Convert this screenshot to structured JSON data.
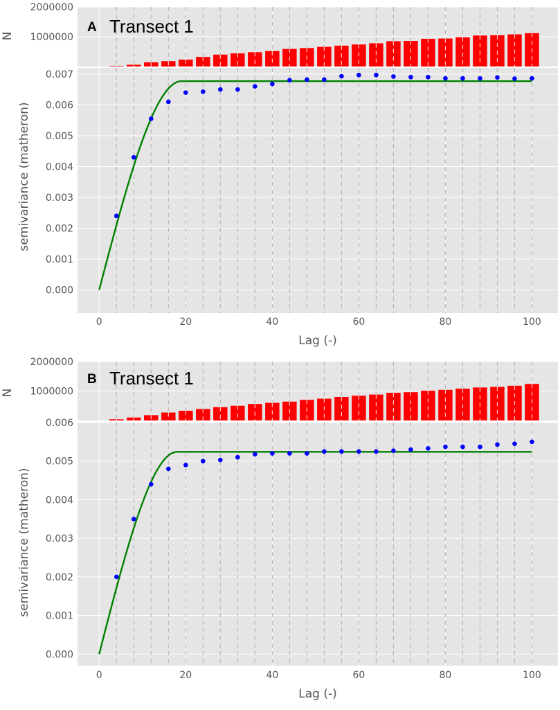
{
  "colors": {
    "panel_bg": "#e5e5e5",
    "grid": "#ffffff",
    "lag_lines": "#b8b8b8",
    "bars": "#ff0000",
    "points": "#0000ff",
    "model": "#008000",
    "tick_text": "#555555"
  },
  "chart_data": [
    {
      "type": "scatter",
      "panel": "A",
      "title": "Transect 1",
      "xlabel": "Lag (-)",
      "ylabel": "semivariance (matheron)",
      "xlim": [
        -5,
        106
      ],
      "ylim": [
        -0.00075,
        0.0072
      ],
      "xticks": [
        "0",
        "20",
        "40",
        "60",
        "80",
        "100"
      ],
      "yticks": [
        "0.000",
        "0.001",
        "0.002",
        "0.003",
        "0.004",
        "0.005",
        "0.006",
        "0.007"
      ],
      "grid": true,
      "lags": [
        4,
        8,
        12,
        16,
        20,
        24,
        28,
        32,
        36,
        40,
        44,
        48,
        52,
        56,
        60,
        64,
        68,
        72,
        76,
        80,
        84,
        88,
        92,
        96,
        100
      ],
      "series": [
        {
          "kind": "points",
          "x": [
            4,
            8,
            12,
            16,
            20,
            24,
            28,
            32,
            36,
            40,
            44,
            48,
            52,
            56,
            60,
            64,
            68,
            72,
            76,
            80,
            84,
            88,
            92,
            96,
            100
          ],
          "y": [
            0.0024,
            0.0043,
            0.00555,
            0.0061,
            0.0064,
            0.00643,
            0.0065,
            0.0065,
            0.0066,
            0.00668,
            0.0068,
            0.00682,
            0.00682,
            0.00693,
            0.00697,
            0.00697,
            0.00692,
            0.0069,
            0.0069,
            0.00686,
            0.00686,
            0.00686,
            0.00689,
            0.00685,
            0.00686
          ]
        },
        {
          "kind": "model-line",
          "model": "spherical",
          "range": 19,
          "sill": 0.00677,
          "nugget": 0,
          "x_from": 0,
          "x_to": 100
        }
      ],
      "histogram": {
        "ylabel": "N",
        "yticks": [
          "1000000",
          "2000000"
        ],
        "ylim": [
          0,
          2000000
        ],
        "x": [
          4,
          8,
          12,
          16,
          20,
          24,
          28,
          32,
          36,
          40,
          44,
          48,
          52,
          56,
          60,
          64,
          68,
          72,
          76,
          80,
          84,
          88,
          92,
          96,
          100
        ],
        "values": [
          20000,
          60000,
          140000,
          180000,
          230000,
          320000,
          400000,
          440000,
          480000,
          520000,
          590000,
          620000,
          660000,
          700000,
          740000,
          780000,
          850000,
          860000,
          930000,
          940000,
          980000,
          1040000,
          1050000,
          1080000,
          1120000
        ]
      }
    },
    {
      "type": "scatter",
      "panel": "B",
      "title": "Transect 1",
      "xlabel": "Lag (-)",
      "ylabel": "semivariance (matheron)",
      "xlim": [
        -5,
        106
      ],
      "ylim": [
        -0.0003,
        0.006
      ],
      "xticks": [
        "0",
        "20",
        "40",
        "60",
        "80",
        "100"
      ],
      "yticks": [
        "0.000",
        "0.001",
        "0.002",
        "0.003",
        "0.004",
        "0.005",
        "0.006"
      ],
      "grid": true,
      "lags": [
        4,
        8,
        12,
        16,
        20,
        24,
        28,
        32,
        36,
        40,
        44,
        48,
        52,
        56,
        60,
        64,
        68,
        72,
        76,
        80,
        84,
        88,
        92,
        96,
        100
      ],
      "series": [
        {
          "kind": "points",
          "x": [
            4,
            8,
            12,
            16,
            20,
            24,
            28,
            32,
            36,
            40,
            44,
            48,
            52,
            56,
            60,
            64,
            68,
            72,
            76,
            80,
            84,
            88,
            92,
            96,
            100
          ],
          "y": [
            0.002,
            0.0035,
            0.0044,
            0.0048,
            0.0049,
            0.005,
            0.00503,
            0.0051,
            0.00518,
            0.0052,
            0.0052,
            0.0052,
            0.00525,
            0.00525,
            0.00525,
            0.00525,
            0.00527,
            0.0053,
            0.00533,
            0.00537,
            0.00537,
            0.00537,
            0.00543,
            0.00545,
            0.0055
          ]
        },
        {
          "kind": "model-line",
          "model": "spherical",
          "range": 18,
          "sill": 0.00524,
          "nugget": 0,
          "x_from": 0,
          "x_to": 100
        }
      ],
      "histogram": {
        "ylabel": "N",
        "yticks": [
          "1000000",
          "2000000"
        ],
        "ylim": [
          0,
          2000000
        ],
        "x": [
          4,
          8,
          12,
          16,
          20,
          24,
          28,
          32,
          36,
          40,
          44,
          48,
          52,
          56,
          60,
          64,
          68,
          72,
          76,
          80,
          84,
          88,
          92,
          96,
          100
        ],
        "values": [
          40000,
          100000,
          180000,
          270000,
          330000,
          390000,
          450000,
          500000,
          560000,
          600000,
          640000,
          700000,
          740000,
          800000,
          840000,
          880000,
          940000,
          960000,
          1010000,
          1040000,
          1080000,
          1120000,
          1140000,
          1180000,
          1240000
        ]
      }
    }
  ]
}
